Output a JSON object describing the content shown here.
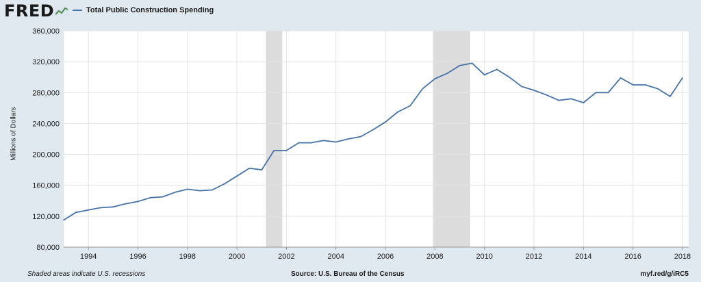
{
  "header": {
    "logo_text": "FRED",
    "legend_label": "Total Public Construction Spending"
  },
  "footer": {
    "left": "Shaded areas indicate U.S. recessions",
    "source": "Source: U.S. Bureau of the Census",
    "url": "myf.red/g/iRC5"
  },
  "chart_data": {
    "type": "line",
    "title": "",
    "ylabel": "Millions of Dollars",
    "xlabel": "",
    "ylim": [
      80000,
      360000
    ],
    "xlim": [
      1993.0,
      2018.25
    ],
    "y_ticks": [
      80000,
      120000,
      160000,
      200000,
      240000,
      280000,
      320000,
      360000
    ],
    "y_tick_labels": [
      "80,000",
      "120,000",
      "160,000",
      "200,000",
      "240,000",
      "280,000",
      "320,000",
      "360,000"
    ],
    "x_ticks": [
      1994,
      1996,
      1998,
      2000,
      2002,
      2004,
      2006,
      2008,
      2010,
      2012,
      2014,
      2016,
      2018
    ],
    "x_tick_labels": [
      "1994",
      "1996",
      "1998",
      "2000",
      "2002",
      "2004",
      "2006",
      "2008",
      "2010",
      "2012",
      "2014",
      "2016",
      "2018"
    ],
    "grid": true,
    "line_color": "#4572a7",
    "recession_color": "#dcdcdc",
    "recessions": [
      [
        2001.17,
        2001.83
      ],
      [
        2007.92,
        2009.42
      ]
    ],
    "series": [
      {
        "name": "Total Public Construction Spending",
        "x": [
          1993.0,
          1993.5,
          1994.0,
          1994.5,
          1995.0,
          1995.5,
          1996.0,
          1996.5,
          1997.0,
          1997.5,
          1998.0,
          1998.5,
          1999.0,
          1999.5,
          2000.0,
          2000.5,
          2001.0,
          2001.5,
          2002.0,
          2002.5,
          2003.0,
          2003.5,
          2004.0,
          2004.5,
          2005.0,
          2005.5,
          2006.0,
          2006.5,
          2007.0,
          2007.5,
          2008.0,
          2008.5,
          2009.0,
          2009.5,
          2010.0,
          2010.5,
          2011.0,
          2011.5,
          2012.0,
          2012.5,
          2013.0,
          2013.5,
          2014.0,
          2014.5,
          2015.0,
          2015.5,
          2016.0,
          2016.5,
          2017.0,
          2017.5,
          2018.0
        ],
        "y": [
          115000,
          125000,
          128000,
          131000,
          132000,
          136000,
          139000,
          144000,
          145000,
          151000,
          155000,
          153000,
          154000,
          162000,
          172000,
          182000,
          180000,
          205000,
          205000,
          215000,
          215000,
          218000,
          216000,
          220000,
          223000,
          232000,
          242000,
          255000,
          263000,
          285000,
          298000,
          305000,
          315000,
          318000,
          303000,
          310000,
          300000,
          288000,
          283000,
          277000,
          270000,
          272000,
          267000,
          280000,
          280000,
          299000,
          290000,
          290000,
          285000,
          275000,
          299000
        ]
      }
    ]
  }
}
